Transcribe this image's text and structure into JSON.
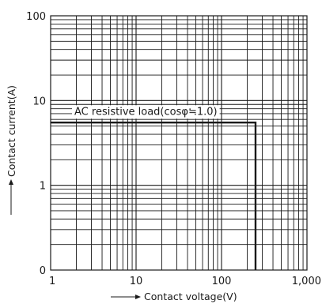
{
  "chart_data": {
    "type": "line",
    "title": "",
    "xlabel": "Contact voltage(V)",
    "ylabel": "Contact current(A)",
    "x_scale": "log",
    "y_scale": "log",
    "xlim": [
      1,
      1000
    ],
    "ylim": [
      0.1,
      100
    ],
    "grid": true,
    "x_ticks": [
      {
        "value": 1,
        "label": "1"
      },
      {
        "value": 10,
        "label": "10"
      },
      {
        "value": 100,
        "label": "100"
      },
      {
        "value": 1000,
        "label": "1,000"
      }
    ],
    "y_ticks": [
      {
        "value": 0.1,
        "label": "0"
      },
      {
        "value": 1,
        "label": "1"
      },
      {
        "value": 10,
        "label": "10"
      },
      {
        "value": 100,
        "label": "100"
      }
    ],
    "series": [
      {
        "x": [
          1,
          250,
          250
        ],
        "y": [
          5.5,
          5.5,
          0.1
        ]
      }
    ],
    "annotations": [
      {
        "text": "AC resistive load(cosφ≒1.0)",
        "x": 13,
        "y": 6.8
      }
    ],
    "colors": {
      "grid": "#1a1a1a",
      "line": "#1a1a1a",
      "text": "#1a1a1a"
    }
  }
}
